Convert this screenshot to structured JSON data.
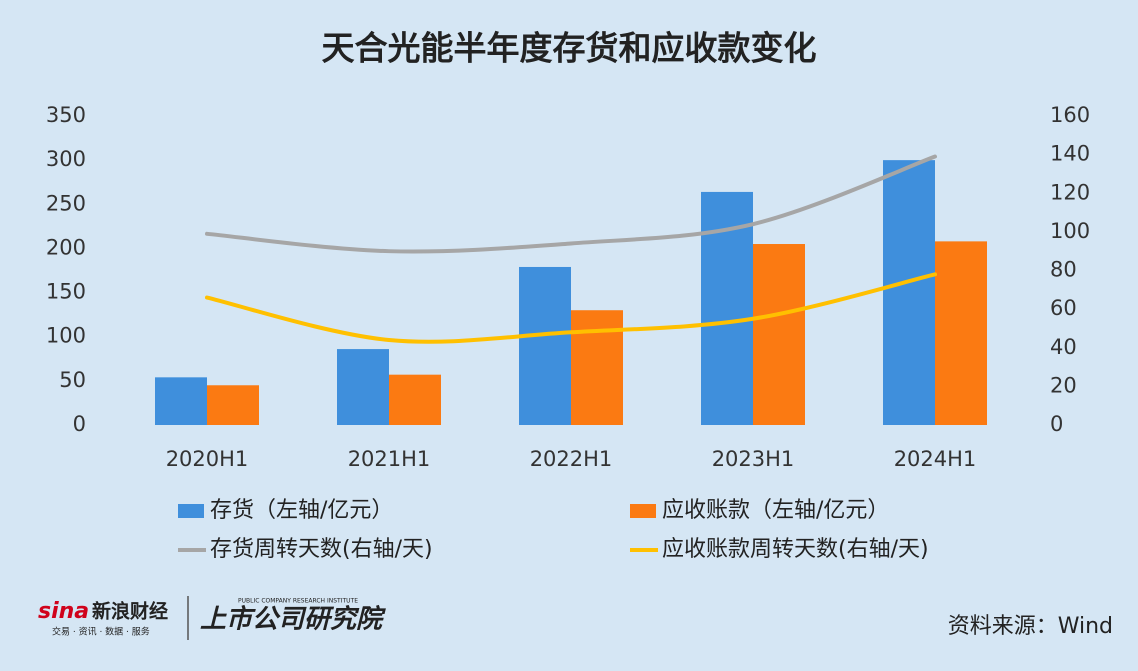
{
  "chart_data": {
    "type": "bar",
    "title": "天合光能半年度存货和应收款变化",
    "categories": [
      "2020H1",
      "2021H1",
      "2022H1",
      "2023H1",
      "2024H1"
    ],
    "series": [
      {
        "name": "存货（左轴/亿元）",
        "type": "bar",
        "color": "#3f8fdc",
        "values": [
          54,
          86,
          179,
          264,
          300
        ]
      },
      {
        "name": "应收账款（左轴/亿元）",
        "type": "bar",
        "color": "#fb7a12",
        "values": [
          45,
          57,
          130,
          205,
          208
        ]
      },
      {
        "name": "存货周转天数(右轴/天)",
        "type": "line",
        "axis": "y2",
        "color": "#a6a6a6",
        "values": [
          99,
          90,
          94,
          104,
          139
        ]
      },
      {
        "name": "应收账款周转天数(右轴/天)",
        "type": "line",
        "axis": "y2",
        "color": "#ffc000",
        "values": [
          66,
          44,
          48,
          55,
          78
        ]
      }
    ],
    "ylim": [
      0,
      350
    ],
    "yticks": [
      0,
      50,
      100,
      150,
      200,
      250,
      300,
      350
    ],
    "y2lim": [
      0,
      160
    ],
    "y2ticks": [
      0,
      20,
      40,
      60,
      80,
      100,
      120,
      140,
      160
    ],
    "grid": false,
    "legend": "bottom"
  },
  "footer": {
    "source": "资料来源：Wind",
    "logo_sina": "sina",
    "logo_sina_cn": "新浪财经",
    "logo_sina_sub": "交易 · 资讯 · 数据 · 服务",
    "logo_institute": "上市公司研究院",
    "logo_institute_en": "PUBLIC COMPANY RESEARCH INSTITUTE"
  }
}
